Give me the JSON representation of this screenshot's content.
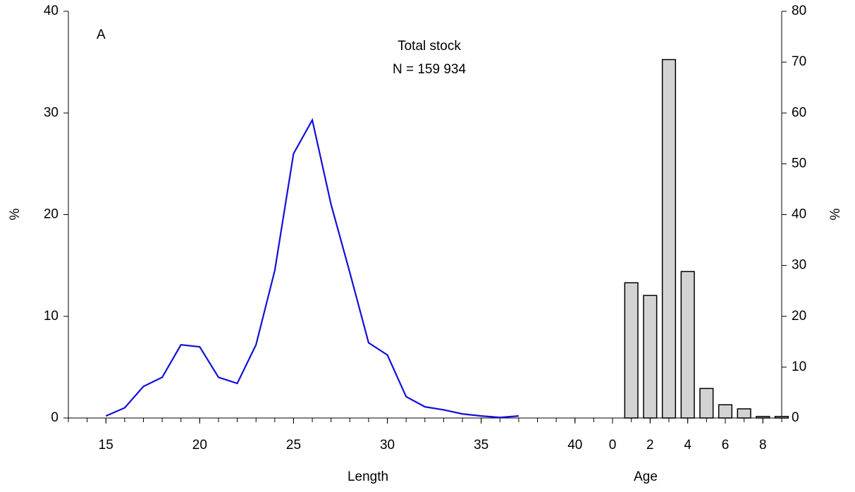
{
  "chart_data": [
    {
      "type": "line",
      "title": "Total stock",
      "subtitle": "N = 159 934",
      "annotation": "A",
      "x_label": "Length",
      "y_label": "%",
      "x": [
        15,
        16,
        17,
        18,
        19,
        20,
        21,
        22,
        23,
        24,
        25,
        26,
        27,
        28,
        29,
        30,
        31,
        32,
        33,
        34,
        35,
        36,
        37
      ],
      "values": [
        0.2,
        1.0,
        3.1,
        4.0,
        7.2,
        7.0,
        4.0,
        3.4,
        7.2,
        14.5,
        26.0,
        29.3,
        21.0,
        14.3,
        7.4,
        6.2,
        2.1,
        1.1,
        0.8,
        0.4,
        0.2,
        0.05,
        0.2
      ],
      "color": "#1010d8",
      "xlim": [
        13,
        42
      ],
      "xticks": [
        15,
        20,
        25,
        30,
        35,
        40
      ],
      "minor_xticks": [
        13,
        14,
        15,
        16,
        17,
        18,
        19,
        20,
        21,
        22,
        23,
        24,
        25,
        26,
        27,
        28,
        29,
        30,
        31,
        32,
        33,
        34,
        35,
        36,
        37,
        38,
        39,
        40,
        41,
        42
      ],
      "ylim": [
        0,
        40
      ],
      "yticks": [
        0,
        10,
        20,
        30,
        40
      ],
      "y_axis_side": "left"
    },
    {
      "type": "bar",
      "x_label": "Age",
      "y_label": "%",
      "x": [
        1,
        2,
        3,
        4,
        5,
        6,
        7,
        8,
        9
      ],
      "values": [
        26.6,
        24.1,
        70.5,
        28.8,
        5.8,
        2.6,
        1.8,
        0.3,
        0.3
      ],
      "color": "#d3d3d3",
      "xlim": [
        0,
        9
      ],
      "xticks": [
        0,
        2,
        4,
        6,
        8
      ],
      "minor_xticks": [
        0,
        1,
        2,
        3,
        4,
        5,
        6,
        7,
        8,
        9
      ],
      "ylim": [
        0,
        80
      ],
      "yticks": [
        0,
        10,
        20,
        30,
        40,
        50,
        60,
        70,
        80
      ],
      "y_axis_side": "right"
    }
  ]
}
